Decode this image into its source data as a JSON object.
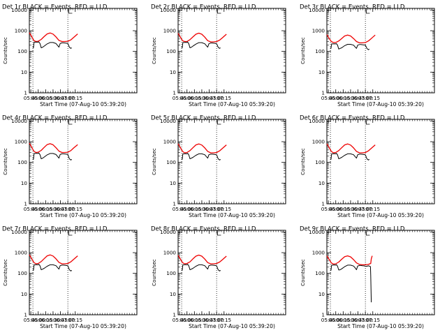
{
  "chart_data": {
    "type": "line",
    "layout": "3x3 grid of detector rate plots",
    "shared": {
      "ylabel": "Counts/sec",
      "xlabel": "Start Time (07-Aug-10 05:39:20)",
      "yscale": "log",
      "ylim": [
        1,
        12000
      ],
      "yticks": [
        1,
        10,
        100,
        1000,
        10000
      ],
      "ytick_labels": [
        "1",
        "10",
        "100",
        "1000",
        "10000"
      ],
      "xlim_hours": [
        3.7,
        7.33
      ],
      "xticks_hours": [
        3.75,
        4.0,
        4.25,
        4.5,
        4.75,
        5.0,
        5.25
      ],
      "xtick_labels": [
        "05:45",
        "06:00",
        "06:15",
        "06:30",
        "06:45",
        "07:00",
        "07:15"
      ],
      "night_boundaries_hours": [
        3.82,
        5.0
      ],
      "bracket_at_hours": 5.03,
      "series_colors": {
        "Events": "#000000",
        "LLD": "#ee0000"
      }
    },
    "charts": [
      {
        "title": "Det 1r BLACK = Events, RED = LLD",
        "series": [
          {
            "name": "LLD",
            "x": [
              3.7,
              3.78,
              3.85,
              3.92,
              4.0,
              4.1,
              4.2,
              4.3,
              4.4,
              4.5,
              4.6,
              4.7,
              4.8,
              4.9,
              5.0,
              5.1,
              5.2,
              5.33
            ],
            "values": [
              800,
              520,
              340,
              300,
              310,
              380,
              520,
              700,
              780,
              690,
              500,
              340,
              300,
              300,
              310,
              360,
              480,
              700
            ]
          },
          {
            "name": "Events",
            "x": [
              3.82,
              3.84,
              3.86,
              3.9,
              3.95,
              4.0,
              4.02,
              4.06,
              4.1,
              4.15,
              4.2,
              4.3,
              4.4,
              4.5,
              4.6,
              4.66,
              4.7,
              4.74,
              4.8,
              4.85,
              4.9,
              4.95,
              5.0,
              5.05,
              5.1,
              5.13
            ],
            "values": [
              160,
              150,
              280,
              280,
              285,
              280,
              290,
              240,
              150,
              160,
              180,
              230,
              270,
              270,
              240,
              190,
              160,
              240,
              260,
              260,
              255,
              250,
              240,
              160,
              140,
              150
            ]
          }
        ]
      },
      {
        "title": "Det 2r BLACK = Events, RED = LLD",
        "series": [
          {
            "name": "LLD",
            "x": [
              3.7,
              3.78,
              3.85,
              3.92,
              4.0,
              4.1,
              4.2,
              4.3,
              4.4,
              4.5,
              4.6,
              4.7,
              4.8,
              4.9,
              5.0,
              5.1,
              5.2,
              5.33
            ],
            "values": [
              750,
              480,
              330,
              300,
              300,
              370,
              500,
              680,
              760,
              680,
              490,
              330,
              290,
              290,
              300,
              350,
              460,
              680
            ]
          },
          {
            "name": "Events",
            "x": [
              3.82,
              3.84,
              3.86,
              3.9,
              3.95,
              4.0,
              4.02,
              4.06,
              4.1,
              4.15,
              4.2,
              4.3,
              4.4,
              4.5,
              4.6,
              4.66,
              4.7,
              4.74,
              4.8,
              4.85,
              4.9,
              4.95,
              5.0,
              5.05,
              5.1,
              5.13
            ],
            "values": [
              160,
              150,
              270,
              270,
              275,
              270,
              285,
              235,
              150,
              160,
              180,
              225,
              265,
              265,
              235,
              185,
              160,
              235,
              255,
              255,
              250,
              245,
              235,
              160,
              140,
              150
            ]
          }
        ]
      },
      {
        "title": "Det 3r BLACK = Events, RED = LLD",
        "series": [
          {
            "name": "LLD",
            "x": [
              3.7,
              3.78,
              3.85,
              3.92,
              4.0,
              4.1,
              4.2,
              4.3,
              4.4,
              4.5,
              4.6,
              4.7,
              4.8,
              4.9,
              5.0,
              5.1,
              5.2,
              5.33
            ],
            "values": [
              650,
              420,
              300,
              270,
              270,
              320,
              420,
              560,
              620,
              560,
              420,
              300,
              260,
              260,
              270,
              320,
              420,
              620
            ]
          },
          {
            "name": "Events",
            "x": [
              3.82,
              3.84,
              3.86,
              3.9,
              3.95,
              4.0,
              4.02,
              4.06,
              4.1,
              4.15,
              4.2,
              4.3,
              4.4,
              4.5,
              4.6,
              4.66,
              4.7,
              4.74,
              4.8,
              4.85,
              4.9,
              4.95,
              5.0,
              5.05,
              5.1,
              5.13
            ],
            "values": [
              150,
              140,
              230,
              230,
              232,
              230,
              240,
              200,
              130,
              140,
              150,
              190,
              220,
              220,
              200,
              160,
              140,
              200,
              215,
              215,
              210,
              205,
              200,
              140,
              120,
              130
            ]
          }
        ]
      },
      {
        "title": "Det 4r BLACK = Events, RED = LLD",
        "series": [
          {
            "name": "LLD",
            "x": [
              3.7,
              3.78,
              3.85,
              3.92,
              4.0,
              4.1,
              4.2,
              4.3,
              4.4,
              4.5,
              4.6,
              4.7,
              4.8,
              4.9,
              5.0,
              5.1,
              5.2,
              5.33
            ],
            "values": [
              850,
              540,
              350,
              300,
              310,
              380,
              530,
              720,
              800,
              710,
              510,
              350,
              300,
              300,
              310,
              370,
              500,
              720
            ]
          },
          {
            "name": "Events",
            "x": [
              3.82,
              3.84,
              3.86,
              3.9,
              3.95,
              4.0,
              4.02,
              4.06,
              4.1,
              4.15,
              4.2,
              4.3,
              4.4,
              4.5,
              4.6,
              4.66,
              4.7,
              4.74,
              4.8,
              4.85,
              4.9,
              4.95,
              5.0,
              5.05,
              5.1,
              5.13
            ],
            "values": [
              150,
              140,
              270,
              270,
              275,
              270,
              285,
              235,
              150,
              160,
              180,
              230,
              270,
              270,
              240,
              190,
              160,
              240,
              260,
              260,
              255,
              250,
              240,
              150,
              130,
              140
            ]
          }
        ]
      },
      {
        "title": "Det 5r BLACK = Events, RED = LLD",
        "series": [
          {
            "name": "LLD",
            "x": [
              3.7,
              3.78,
              3.85,
              3.92,
              4.0,
              4.1,
              4.2,
              4.3,
              4.4,
              4.5,
              4.6,
              4.7,
              4.8,
              4.9,
              5.0,
              5.1,
              5.2,
              5.33
            ],
            "values": [
              800,
              510,
              340,
              290,
              300,
              370,
              510,
              700,
              780,
              690,
              500,
              340,
              290,
              290,
              300,
              360,
              480,
              700
            ]
          },
          {
            "name": "Events",
            "x": [
              3.82,
              3.84,
              3.86,
              3.9,
              3.95,
              4.0,
              4.02,
              4.06,
              4.1,
              4.15,
              4.2,
              4.3,
              4.4,
              4.5,
              4.6,
              4.66,
              4.7,
              4.74,
              4.8,
              4.85,
              4.9,
              4.95,
              5.0,
              5.05,
              5.1,
              5.13
            ],
            "values": [
              150,
              140,
              260,
              260,
              265,
              260,
              275,
              230,
              150,
              160,
              175,
              220,
              260,
              260,
              235,
              185,
              160,
              235,
              250,
              250,
              245,
              240,
              230,
              150,
              130,
              140
            ]
          }
        ]
      },
      {
        "title": "Det 6r BLACK = Events, RED = LLD",
        "series": [
          {
            "name": "LLD",
            "x": [
              3.7,
              3.78,
              3.85,
              3.92,
              4.0,
              4.1,
              4.2,
              4.3,
              4.4,
              4.5,
              4.6,
              4.7,
              4.8,
              4.9,
              5.0,
              5.1,
              5.2,
              5.33
            ],
            "values": [
              800,
              510,
              340,
              290,
              300,
              370,
              510,
              700,
              780,
              690,
              500,
              340,
              290,
              290,
              300,
              360,
              480,
              700
            ]
          },
          {
            "name": "Events",
            "x": [
              3.82,
              3.84,
              3.86,
              3.9,
              3.95,
              4.0,
              4.02,
              4.06,
              4.1,
              4.15,
              4.2,
              4.3,
              4.4,
              4.5,
              4.6,
              4.66,
              4.7,
              4.74,
              4.8,
              4.85,
              4.9,
              4.95,
              5.0,
              5.05,
              5.1,
              5.13
            ],
            "values": [
              150,
              140,
              260,
              260,
              265,
              260,
              275,
              230,
              150,
              160,
              175,
              220,
              260,
              260,
              235,
              185,
              160,
              235,
              250,
              250,
              245,
              240,
              230,
              150,
              130,
              140
            ]
          }
        ]
      },
      {
        "title": "Det 7r BLACK = Events, RED = LLD",
        "series": [
          {
            "name": "LLD",
            "x": [
              3.7,
              3.78,
              3.85,
              3.92,
              4.0,
              4.1,
              4.2,
              4.3,
              4.4,
              4.5,
              4.6,
              4.7,
              4.8,
              4.9,
              5.0,
              5.1,
              5.2,
              5.33
            ],
            "values": [
              800,
              510,
              340,
              290,
              300,
              370,
              510,
              700,
              780,
              690,
              500,
              340,
              290,
              290,
              300,
              360,
              480,
              700
            ]
          },
          {
            "name": "Events",
            "x": [
              3.82,
              3.84,
              3.86,
              3.9,
              3.95,
              4.0,
              4.02,
              4.06,
              4.1,
              4.15,
              4.2,
              4.3,
              4.4,
              4.5,
              4.6,
              4.66,
              4.7,
              4.74,
              4.8,
              4.85,
              4.9,
              4.95,
              5.0,
              5.05,
              5.1,
              5.13
            ],
            "values": [
              150,
              140,
              260,
              260,
              265,
              260,
              275,
              230,
              150,
              160,
              175,
              220,
              260,
              260,
              235,
              185,
              160,
              235,
              250,
              250,
              245,
              240,
              230,
              150,
              130,
              140
            ]
          }
        ]
      },
      {
        "title": "Det 8r BLACK = Events, RED = LLD",
        "series": [
          {
            "name": "LLD",
            "x": [
              3.7,
              3.78,
              3.85,
              3.92,
              4.0,
              4.1,
              4.2,
              4.3,
              4.4,
              4.5,
              4.6,
              4.7,
              4.8,
              4.9,
              5.0,
              5.1,
              5.2,
              5.33
            ],
            "values": [
              750,
              480,
              330,
              290,
              300,
              360,
              500,
              680,
              760,
              680,
              490,
              330,
              290,
              290,
              300,
              350,
              460,
              680
            ]
          },
          {
            "name": "Events",
            "x": [
              3.82,
              3.84,
              3.86,
              3.9,
              3.95,
              4.0,
              4.02,
              4.06,
              4.1,
              4.15,
              4.2,
              4.3,
              4.4,
              4.5,
              4.6,
              4.66,
              4.7,
              4.74,
              4.8,
              4.85,
              4.9,
              4.95,
              5.0,
              5.05,
              5.1,
              5.13
            ],
            "values": [
              150,
              140,
              260,
              260,
              265,
              260,
              275,
              230,
              150,
              160,
              175,
              220,
              260,
              260,
              235,
              185,
              160,
              235,
              250,
              250,
              245,
              240,
              230,
              150,
              130,
              140
            ]
          }
        ]
      },
      {
        "title": "Det 9r BLACK = Events, RED = LLD",
        "series": [
          {
            "name": "LLD",
            "x": [
              3.7,
              3.78,
              3.85,
              3.92,
              4.0,
              4.1,
              4.2,
              4.3,
              4.4,
              4.5,
              4.6,
              4.7,
              4.8,
              4.9,
              5.0,
              5.1,
              5.15,
              5.18,
              5.2,
              5.23
            ],
            "values": [
              700,
              460,
              320,
              280,
              290,
              350,
              480,
              640,
              700,
              630,
              460,
              320,
              270,
              260,
              260,
              270,
              290,
              300,
              500,
              700
            ]
          },
          {
            "name": "Events",
            "x": [
              3.82,
              3.84,
              3.86,
              3.9,
              3.95,
              4.0,
              4.02,
              4.06,
              4.1,
              4.15,
              4.2,
              4.3,
              4.4,
              4.5,
              4.6,
              4.66,
              4.7,
              4.74,
              4.8,
              4.85,
              4.9,
              4.95,
              5.0,
              5.05,
              5.1,
              5.15,
              5.17,
              5.18,
              5.2
            ],
            "values": [
              150,
              140,
              250,
              250,
              255,
              250,
              265,
              220,
              145,
              150,
              165,
              210,
              250,
              250,
              225,
              180,
              150,
              225,
              240,
              240,
              235,
              230,
              220,
              220,
              230,
              220,
              210,
              80,
              4
            ]
          }
        ]
      }
    ]
  }
}
